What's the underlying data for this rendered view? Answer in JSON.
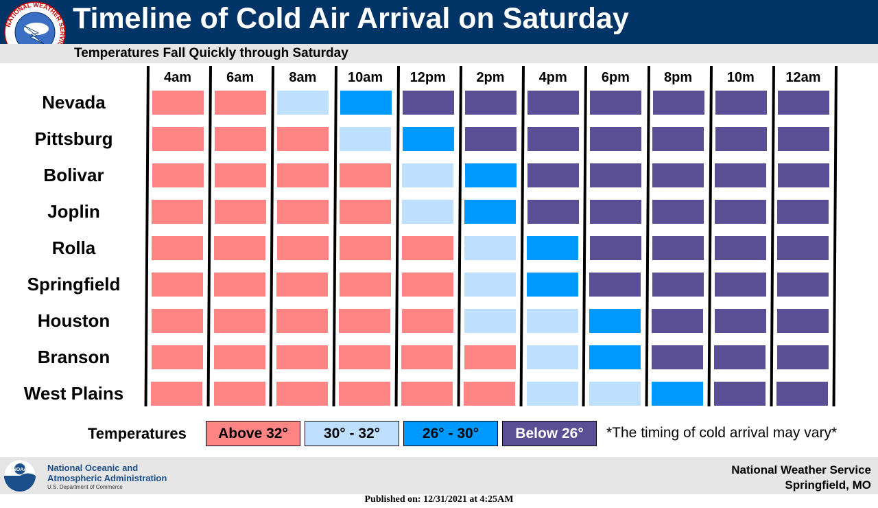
{
  "header": {
    "title": "Timeline of Cold Air Arrival on Saturday",
    "subtitle": "Temperatures Fall Quickly through Saturday",
    "logo_text": "NATIONAL WEATHER SERVICE"
  },
  "chart_data": {
    "type": "heatmap",
    "title": "Timeline of Cold Air Arrival on Saturday",
    "subtitle": "Temperatures Fall Quickly through Saturday",
    "times": [
      "4am",
      "6am",
      "8am",
      "10am",
      "12pm",
      "2pm",
      "4pm",
      "6pm",
      "8pm",
      "10m",
      "12am"
    ],
    "locations": [
      "Nevada",
      "Pittsburg",
      "Bolivar",
      "Joplin",
      "Rolla",
      "Springfield",
      "Houston",
      "Branson",
      "West Plains"
    ],
    "categories": [
      {
        "label": "Above 32°",
        "color": "#ff8585"
      },
      {
        "label": "30° - 32°",
        "color": "#bfdfff"
      },
      {
        "label": "26° - 30°",
        "color": "#0099ff"
      },
      {
        "label": "Below 26°",
        "color": "#5a4e94"
      }
    ],
    "values": [
      [
        0,
        0,
        1,
        2,
        3,
        3,
        3,
        3,
        3,
        3,
        3
      ],
      [
        0,
        0,
        0,
        1,
        2,
        3,
        3,
        3,
        3,
        3,
        3
      ],
      [
        0,
        0,
        0,
        0,
        1,
        2,
        3,
        3,
        3,
        3,
        3
      ],
      [
        0,
        0,
        0,
        0,
        1,
        2,
        3,
        3,
        3,
        3,
        3
      ],
      [
        0,
        0,
        0,
        0,
        0,
        1,
        2,
        3,
        3,
        3,
        3
      ],
      [
        0,
        0,
        0,
        0,
        0,
        1,
        2,
        3,
        3,
        3,
        3
      ],
      [
        0,
        0,
        0,
        0,
        0,
        1,
        1,
        2,
        3,
        3,
        3
      ],
      [
        0,
        0,
        0,
        0,
        0,
        0,
        1,
        2,
        3,
        3,
        3
      ],
      [
        0,
        0,
        0,
        0,
        0,
        0,
        1,
        1,
        2,
        3,
        3
      ]
    ]
  },
  "legend": {
    "title": "Temperatures",
    "note": "*The timing of cold arrival may vary*"
  },
  "footer": {
    "noaa_logo_text": "NOAA",
    "noaa_name_line1": "National Oceanic and",
    "noaa_name_line2": "Atmospheric Administration",
    "noaa_dept": "U.S. Department of Commerce",
    "office_line1": "National Weather Service",
    "office_line2": "Springfield, MO",
    "published": "Published on: 12/31/2021 at 4:25AM"
  }
}
